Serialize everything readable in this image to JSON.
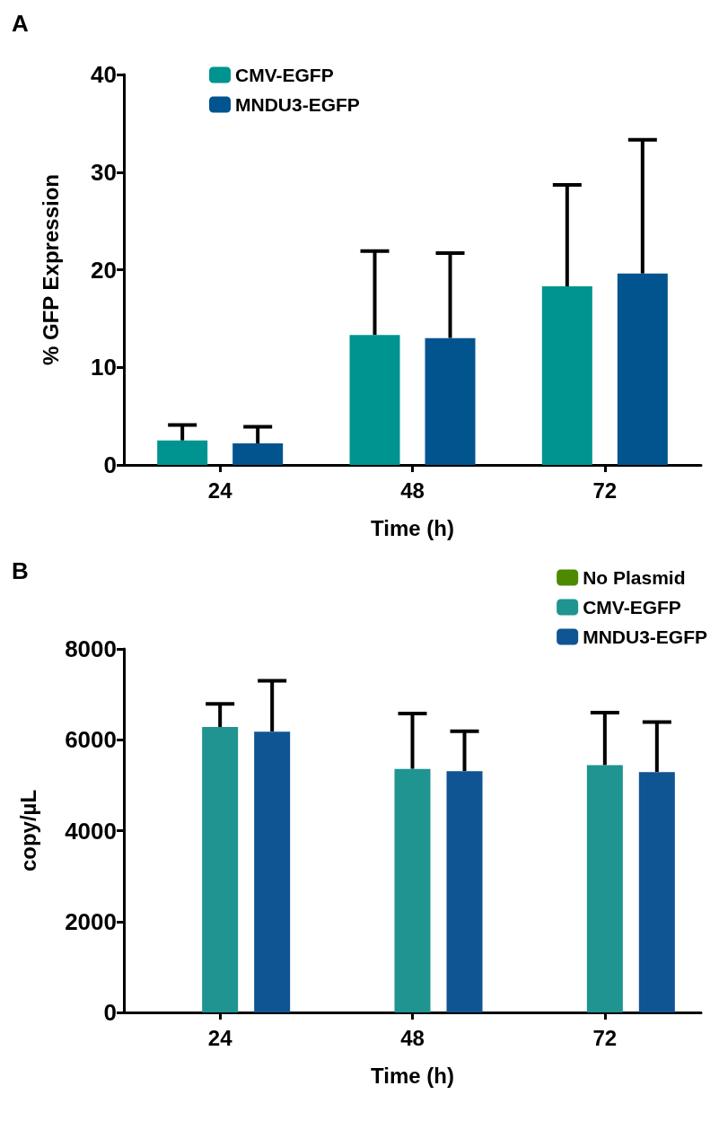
{
  "chart_data": [
    {
      "type": "bar",
      "title": "A",
      "xlabel": "Time (h)",
      "ylabel": "% GFP Expression",
      "categories": [
        "24",
        "48",
        "72"
      ],
      "ylim": [
        0,
        40
      ],
      "yticks": [
        0,
        10,
        20,
        30,
        40
      ],
      "grid": false,
      "legend": "top left",
      "series": [
        {
          "name": "CMV-EGFP",
          "color": "#009490",
          "values": [
            2.5,
            13.3,
            18.3
          ],
          "errors": [
            [
              2.5,
              4.1
            ],
            [
              13.3,
              21.9
            ],
            [
              18.3,
              28.7
            ]
          ]
        },
        {
          "name": "MNDU3-EGFP",
          "color": "#02548f",
          "values": [
            2.2,
            13.0,
            19.6
          ],
          "errors": [
            [
              2.2,
              3.9
            ],
            [
              13.0,
              21.7
            ],
            [
              19.6,
              33.3
            ]
          ]
        }
      ]
    },
    {
      "type": "bar",
      "title": "B",
      "xlabel": "Time (h)",
      "ylabel": "copy/µL",
      "categories": [
        "24",
        "48",
        "72"
      ],
      "ylim": [
        0,
        8000
      ],
      "yticks": [
        0,
        2000,
        4000,
        6000,
        8000
      ],
      "grid": false,
      "legend": "top right",
      "series": [
        {
          "name": "No Plasmid",
          "color": "#4e8a00",
          "values": [
            0,
            0,
            null
          ]
        },
        {
          "name": "CMV-EGFP",
          "color": "#1f9490",
          "values": [
            6280,
            5360,
            5440
          ],
          "errors": [
            [
              6280,
              6790
            ],
            [
              5360,
              6580
            ],
            [
              5440,
              6600
            ]
          ]
        },
        {
          "name": "MNDU3-EGFP",
          "color": "#0f5493",
          "values": [
            6180,
            5310,
            5290
          ],
          "errors": [
            [
              6180,
              7300
            ],
            [
              5310,
              6190
            ],
            [
              5290,
              6390
            ]
          ]
        }
      ]
    }
  ]
}
